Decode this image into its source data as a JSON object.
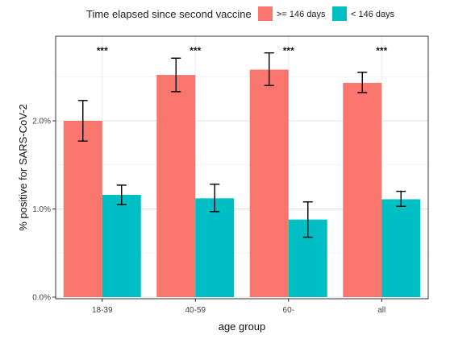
{
  "chart_data": {
    "type": "bar",
    "title": "",
    "xlabel": "age group",
    "ylabel": "% positive for SARS-CoV-2",
    "legend": {
      "title": "Time elapsed since second vaccine",
      "placement": "top"
    },
    "categories": [
      "18-39",
      "40-59",
      "60-",
      "all"
    ],
    "series": [
      {
        "name": ">= 146 days",
        "color": "#F8766D",
        "values": [
          2.0,
          2.52,
          2.58,
          2.43
        ],
        "error_low": [
          1.77,
          2.33,
          2.4,
          2.32
        ],
        "error_high": [
          2.23,
          2.71,
          2.77,
          2.55
        ]
      },
      {
        "name": "< 146 days",
        "color": "#00BFC4",
        "values": [
          1.16,
          1.12,
          0.88,
          1.11
        ],
        "error_low": [
          1.05,
          0.97,
          0.68,
          1.03
        ],
        "error_high": [
          1.27,
          1.28,
          1.08,
          1.2
        ]
      }
    ],
    "significance": [
      "***",
      "***",
      "***",
      "***"
    ],
    "yticks": [
      "0.0%",
      "1.0%",
      "2.0%"
    ],
    "ytick_values": [
      0,
      1,
      2
    ],
    "ylim": [
      0,
      2.95
    ],
    "grid": true
  }
}
